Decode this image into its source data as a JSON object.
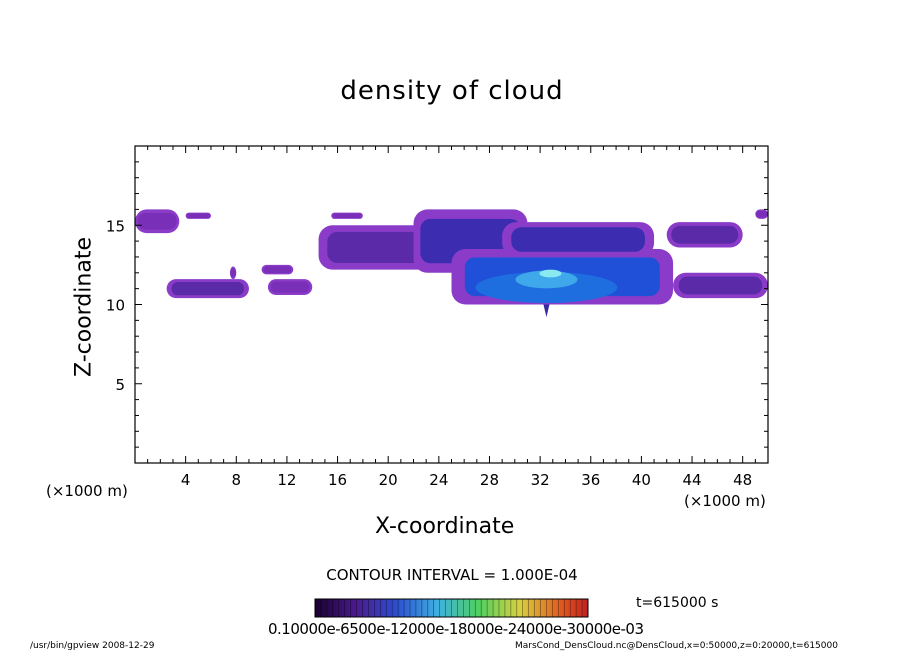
{
  "chart_data": {
    "type": "heatmap",
    "title": "density of cloud",
    "xlabel": "X-coordinate",
    "ylabel": "Z-coordinate",
    "x_unit_left": "(×1000 m)",
    "x_unit_right": "(×1000 m)",
    "xlim": [
      0,
      50
    ],
    "ylim": [
      0,
      20
    ],
    "x_ticks": [
      4,
      8,
      12,
      16,
      20,
      24,
      28,
      32,
      36,
      40,
      44,
      48
    ],
    "y_ticks": [
      5,
      10,
      15
    ],
    "contour_interval": "CONTOUR INTERVAL = 1.000E-04",
    "time": "t=615000 s",
    "colorbar_labels": "0.10000e-6500e-12000e-18000e-24000e-30000e-03",
    "cloud_regions": [
      {
        "x": [
          0,
          3.5
        ],
        "z": [
          14.5,
          16.0
        ],
        "intensity": 0.15
      },
      {
        "x": [
          4.0,
          6.0
        ],
        "z": [
          15.4,
          15.8
        ],
        "intensity": 0.12
      },
      {
        "x": [
          2.5,
          9.0
        ],
        "z": [
          10.4,
          11.6
        ],
        "intensity": 0.2
      },
      {
        "x": [
          7.5,
          8.0
        ],
        "z": [
          11.6,
          12.4
        ],
        "intensity": 0.1
      },
      {
        "x": [
          10.0,
          12.5
        ],
        "z": [
          11.9,
          12.5
        ],
        "intensity": 0.12
      },
      {
        "x": [
          10.5,
          14.0
        ],
        "z": [
          10.6,
          11.6
        ],
        "intensity": 0.15
      },
      {
        "x": [
          14.5,
          26.0
        ],
        "z": [
          12.2,
          15.0
        ],
        "intensity": 0.3
      },
      {
        "x": [
          15.5,
          18.0
        ],
        "z": [
          15.4,
          15.8
        ],
        "intensity": 0.1
      },
      {
        "x": [
          22.0,
          31.0
        ],
        "z": [
          12.0,
          16.0
        ],
        "intensity": 0.35
      },
      {
        "x": [
          25.0,
          42.5
        ],
        "z": [
          10.0,
          13.5
        ],
        "intensity": 0.85
      },
      {
        "x": [
          29.0,
          41.0
        ],
        "z": [
          13.0,
          15.2
        ],
        "intensity": 0.45
      },
      {
        "x": [
          42.0,
          48.0
        ],
        "z": [
          13.6,
          15.2
        ],
        "intensity": 0.3
      },
      {
        "x": [
          42.5,
          50.0
        ],
        "z": [
          10.4,
          12.0
        ],
        "intensity": 0.3
      },
      {
        "x": [
          49.0,
          50.0
        ],
        "z": [
          15.4,
          16.0
        ],
        "intensity": 0.1
      }
    ]
  },
  "footer": {
    "left": "/usr/bin/gpview   2008-12-29",
    "right": "MarsCond_DensCloud.nc@DensCloud,x=0:50000,z=0:20000,t=615000"
  }
}
